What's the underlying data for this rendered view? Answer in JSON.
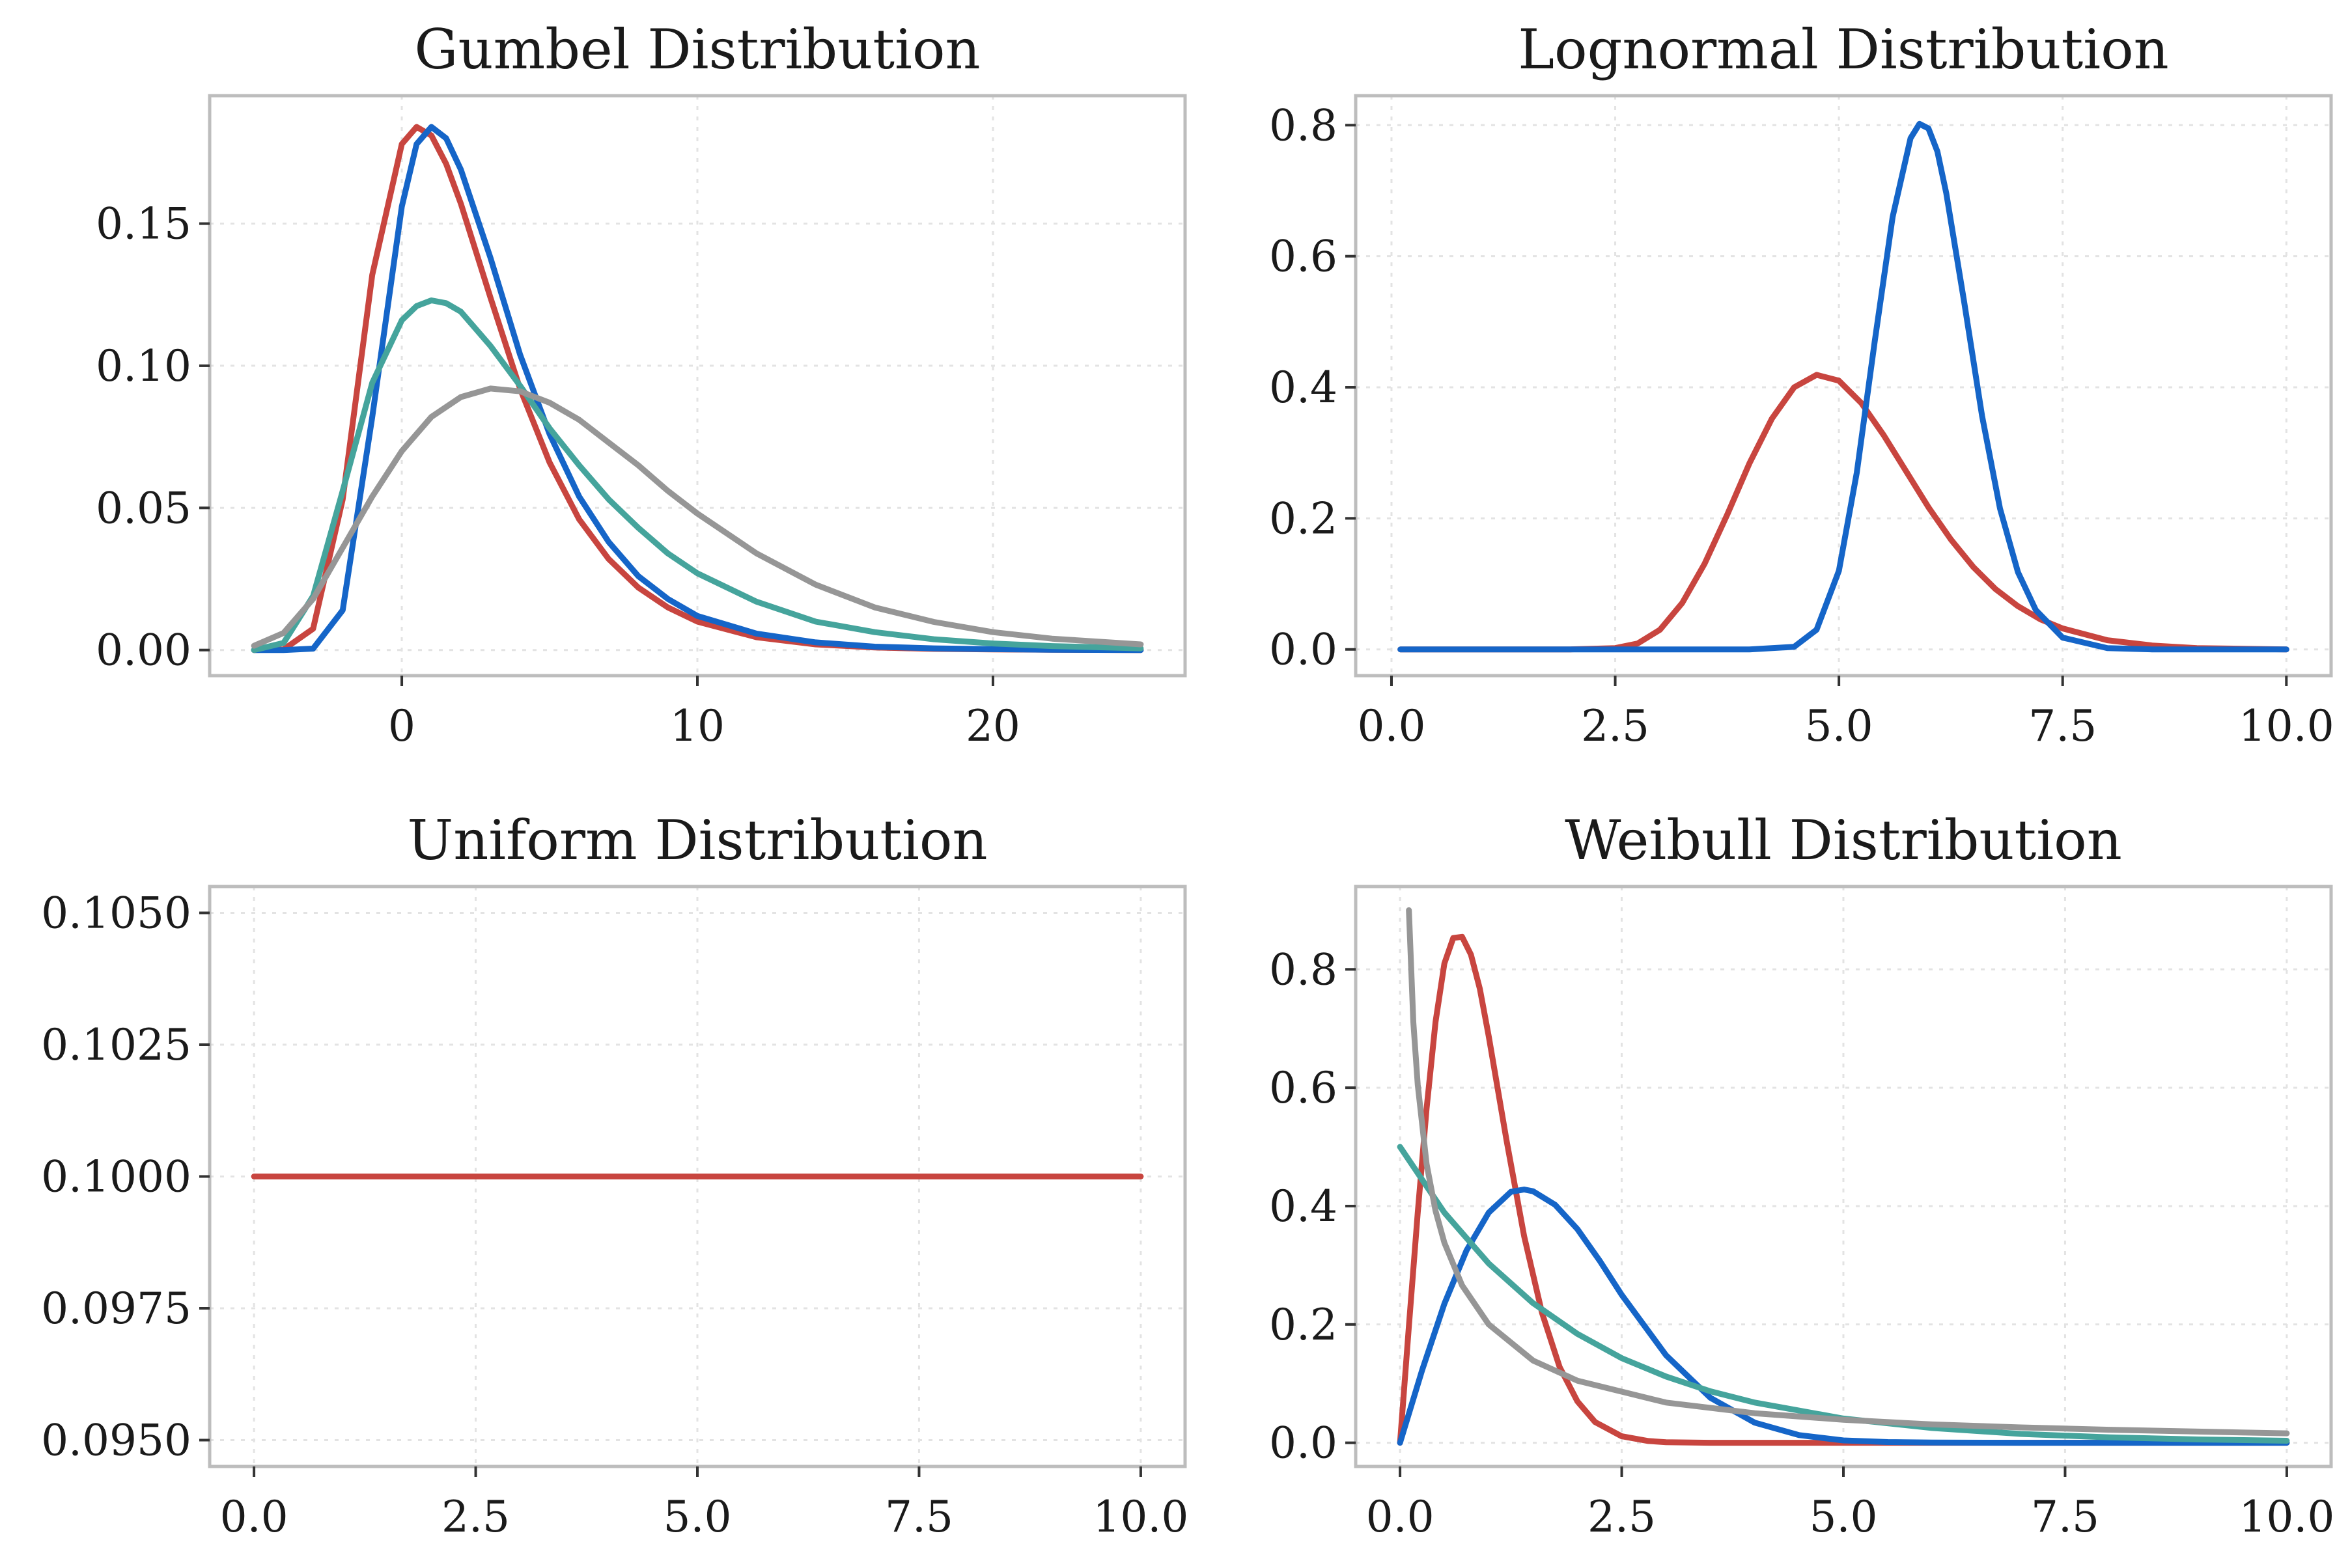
{
  "colors": {
    "red": "#c8453f",
    "blue": "#1565c8",
    "teal": "#45a49c",
    "gray": "#969696"
  },
  "chart_data": [
    {
      "type": "line",
      "title": "Gumbel Distribution",
      "xlabel": "",
      "ylabel": "",
      "xlim": [
        -6.5,
        26.5
      ],
      "ylim": [
        -0.009,
        0.195
      ],
      "xticks": [
        0,
        10,
        20
      ],
      "xtick_labels": [
        "0",
        "10",
        "20"
      ],
      "yticks": [
        0.0,
        0.05,
        0.1,
        0.15
      ],
      "ytick_labels": [
        "0.00",
        "0.05",
        "0.10",
        "0.15"
      ],
      "grid": true,
      "series": [
        {
          "color": "red",
          "x": [
            -5,
            -4,
            -3,
            -2,
            -1,
            0,
            0.5,
            1,
            1.5,
            2,
            3,
            4,
            5,
            6,
            7,
            8,
            9,
            10,
            12,
            14,
            16,
            18,
            20,
            22,
            25
          ],
          "y": [
            0.0,
            0.0002,
            0.0075,
            0.053,
            0.132,
            0.178,
            0.184,
            0.181,
            0.171,
            0.157,
            0.124,
            0.092,
            0.066,
            0.046,
            0.032,
            0.022,
            0.015,
            0.01,
            0.0045,
            0.002,
            0.0009,
            0.0004,
            0.0002,
            0.0001,
            0.0
          ]
        },
        {
          "color": "blue",
          "x": [
            -5,
            -4,
            -3,
            -2,
            -1,
            0,
            0.5,
            1,
            1.5,
            2,
            3,
            4,
            5,
            6,
            7,
            8,
            9,
            10,
            12,
            14,
            16,
            18,
            20,
            22,
            25
          ],
          "y": [
            0.0,
            0.0,
            0.0005,
            0.014,
            0.082,
            0.156,
            0.178,
            0.184,
            0.18,
            0.169,
            0.138,
            0.104,
            0.076,
            0.054,
            0.038,
            0.026,
            0.018,
            0.012,
            0.0058,
            0.0027,
            0.0012,
            0.0006,
            0.0003,
            0.0001,
            0.0
          ]
        },
        {
          "color": "teal",
          "x": [
            -5,
            -4,
            -3,
            -2,
            -1,
            0,
            0.5,
            1,
            1.5,
            2,
            3,
            4,
            5,
            6,
            7,
            8,
            9,
            10,
            12,
            14,
            16,
            18,
            20,
            22,
            25
          ],
          "y": [
            0.0,
            0.0025,
            0.019,
            0.056,
            0.094,
            0.116,
            0.121,
            0.123,
            0.122,
            0.119,
            0.107,
            0.093,
            0.078,
            0.065,
            0.053,
            0.043,
            0.034,
            0.027,
            0.017,
            0.01,
            0.0063,
            0.0038,
            0.0023,
            0.0014,
            0.0006
          ]
        },
        {
          "color": "gray",
          "x": [
            -5,
            -4,
            -3,
            -2,
            -1,
            0,
            1,
            2,
            3,
            4,
            5,
            6,
            7,
            8,
            9,
            10,
            12,
            14,
            16,
            18,
            20,
            22,
            25
          ],
          "y": [
            0.0015,
            0.006,
            0.018,
            0.036,
            0.054,
            0.07,
            0.082,
            0.089,
            0.092,
            0.091,
            0.087,
            0.081,
            0.073,
            0.065,
            0.056,
            0.048,
            0.034,
            0.023,
            0.015,
            0.0099,
            0.0063,
            0.004,
            0.002
          ]
        }
      ]
    },
    {
      "type": "line",
      "title": "Lognormal Distribution",
      "xlabel": "",
      "ylabel": "",
      "xlim": [
        -0.4,
        10.5
      ],
      "ylim": [
        -0.04,
        0.845
      ],
      "xticks": [
        0.0,
        2.5,
        5.0,
        7.5,
        10.0
      ],
      "xtick_labels": [
        "0.0",
        "2.5",
        "5.0",
        "7.5",
        "10.0"
      ],
      "yticks": [
        0.0,
        0.2,
        0.4,
        0.6,
        0.8
      ],
      "ytick_labels": [
        "0.0",
        "0.2",
        "0.4",
        "0.6",
        "0.8"
      ],
      "grid": true,
      "series": [
        {
          "color": "red",
          "x": [
            0.1,
            2.0,
            2.5,
            2.75,
            3.0,
            3.25,
            3.5,
            3.75,
            4.0,
            4.25,
            4.5,
            4.75,
            5.0,
            5.25,
            5.5,
            5.75,
            6.0,
            6.25,
            6.5,
            6.75,
            7.0,
            7.25,
            7.5,
            8.0,
            8.5,
            9.0,
            10.0
          ],
          "y": [
            0.0,
            0.0,
            0.002,
            0.009,
            0.03,
            0.071,
            0.131,
            0.205,
            0.284,
            0.352,
            0.4,
            0.419,
            0.41,
            0.376,
            0.327,
            0.272,
            0.217,
            0.168,
            0.126,
            0.092,
            0.066,
            0.046,
            0.032,
            0.014,
            0.006,
            0.002,
            0.0
          ]
        },
        {
          "color": "blue",
          "x": [
            0.1,
            4.0,
            4.5,
            4.75,
            5.0,
            5.2,
            5.4,
            5.6,
            5.8,
            5.9,
            6.0,
            6.1,
            6.2,
            6.4,
            6.6,
            6.8,
            7.0,
            7.2,
            7.5,
            8.0,
            8.5,
            10.0
          ],
          "y": [
            0.0,
            0.0,
            0.004,
            0.03,
            0.12,
            0.27,
            0.47,
            0.66,
            0.78,
            0.802,
            0.795,
            0.76,
            0.696,
            0.53,
            0.356,
            0.215,
            0.118,
            0.06,
            0.018,
            0.002,
            0.0,
            0.0
          ]
        }
      ]
    },
    {
      "type": "line",
      "title": "Uniform Distribution",
      "xlabel": "",
      "ylabel": "",
      "xlim": [
        -0.5,
        10.5
      ],
      "ylim": [
        0.0945,
        0.1055
      ],
      "xticks": [
        0.0,
        2.5,
        5.0,
        7.5,
        10.0
      ],
      "xtick_labels": [
        "0.0",
        "2.5",
        "5.0",
        "7.5",
        "10.0"
      ],
      "yticks": [
        0.095,
        0.0975,
        0.1,
        0.1025,
        0.105
      ],
      "ytick_labels": [
        "0.0950",
        "0.0975",
        "0.1000",
        "0.1025",
        "0.1050"
      ],
      "grid": true,
      "series": [
        {
          "color": "red",
          "x": [
            0,
            10
          ],
          "y": [
            0.1,
            0.1
          ]
        }
      ]
    },
    {
      "type": "line",
      "title": "Weibull Distribution",
      "xlabel": "",
      "ylabel": "",
      "xlim": [
        -0.5,
        10.5
      ],
      "ylim": [
        -0.04,
        0.94
      ],
      "xticks": [
        0.0,
        2.5,
        5.0,
        7.5,
        10.0
      ],
      "xtick_labels": [
        "0.0",
        "2.5",
        "5.0",
        "7.5",
        "10.0"
      ],
      "yticks": [
        0.0,
        0.2,
        0.4,
        0.6,
        0.8
      ],
      "ytick_labels": [
        "0.0",
        "0.2",
        "0.4",
        "0.6",
        "0.8"
      ],
      "grid": true,
      "series": [
        {
          "color": "red",
          "x": [
            0.0,
            0.1,
            0.2,
            0.3,
            0.4,
            0.5,
            0.6,
            0.7,
            0.8,
            0.9,
            1.0,
            1.2,
            1.4,
            1.6,
            1.8,
            2.0,
            2.2,
            2.5,
            2.8,
            3.0,
            3.5,
            10.0
          ],
          "y": [
            0.0,
            0.197,
            0.389,
            0.565,
            0.711,
            0.81,
            0.853,
            0.855,
            0.825,
            0.767,
            0.687,
            0.512,
            0.349,
            0.22,
            0.128,
            0.07,
            0.035,
            0.011,
            0.003,
            0.001,
            0.0,
            0.0
          ]
        },
        {
          "color": "blue",
          "x": [
            0.0,
            0.25,
            0.5,
            0.75,
            1.0,
            1.25,
            1.4,
            1.5,
            1.75,
            2.0,
            2.25,
            2.5,
            3.0,
            3.5,
            4.0,
            4.5,
            5.0,
            5.5,
            6.0,
            7.0,
            10.0
          ],
          "y": [
            0.0,
            0.123,
            0.235,
            0.325,
            0.389,
            0.424,
            0.428,
            0.425,
            0.402,
            0.361,
            0.308,
            0.25,
            0.148,
            0.076,
            0.034,
            0.013,
            0.004,
            0.0013,
            0.0004,
            0.0,
            0.0
          ]
        },
        {
          "color": "teal",
          "x": [
            0.0,
            0.5,
            1.0,
            1.5,
            2.0,
            2.5,
            3.0,
            3.5,
            4.0,
            5.0,
            6.0,
            7.0,
            8.0,
            9.0,
            10.0
          ],
          "y": [
            0.5,
            0.389,
            0.303,
            0.236,
            0.184,
            0.143,
            0.112,
            0.087,
            0.068,
            0.041,
            0.025,
            0.015,
            0.0092,
            0.0056,
            0.0034
          ]
        },
        {
          "color": "gray",
          "x": [
            0.1,
            0.15,
            0.2,
            0.3,
            0.4,
            0.5,
            0.7,
            1.0,
            1.5,
            2.0,
            3.0,
            4.0,
            5.0,
            6.0,
            7.0,
            8.0,
            9.0,
            10.0
          ],
          "y": [
            0.9,
            0.711,
            0.605,
            0.471,
            0.392,
            0.338,
            0.266,
            0.2,
            0.139,
            0.105,
            0.068,
            0.05,
            0.039,
            0.031,
            0.026,
            0.022,
            0.019,
            0.016
          ]
        }
      ]
    }
  ]
}
